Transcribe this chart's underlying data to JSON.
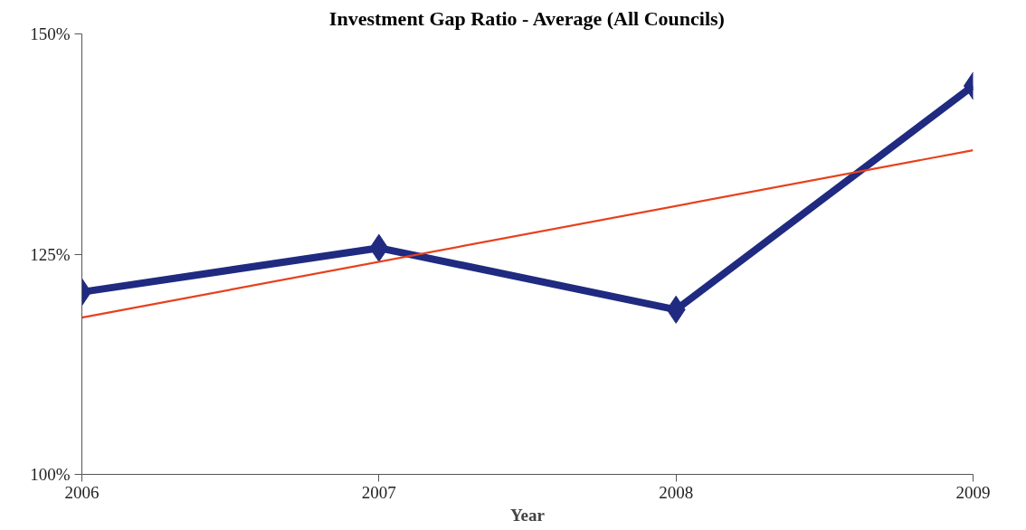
{
  "chart_data": {
    "type": "line",
    "title": "Investment Gap Ratio - Average (All Councils)",
    "xlabel": "Year",
    "x": [
      2006,
      2007,
      2008,
      2009
    ],
    "xlim": [
      2006,
      2009
    ],
    "xticks": [
      2006,
      2007,
      2008,
      2009
    ],
    "ylim": [
      100,
      150
    ],
    "yticks": [
      {
        "value": 100,
        "label": "100%"
      },
      {
        "value": 125,
        "label": "125%"
      },
      {
        "value": 150,
        "label": "150%"
      }
    ],
    "grid": false,
    "series": [
      {
        "color": "#1f2a80",
        "values": [
          120.7,
          125.7,
          118.7,
          144.1
        ],
        "marker": "diamond"
      },
      {
        "type": "line",
        "color": "#e8401c",
        "x": [
          2006,
          2009
        ],
        "values": [
          117.8,
          136.8
        ],
        "marker": "none"
      }
    ]
  }
}
